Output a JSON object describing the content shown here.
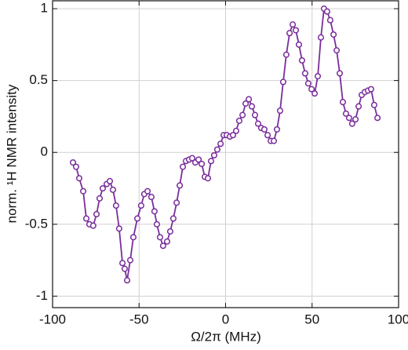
{
  "chart_data": {
    "type": "line",
    "xlabel": "Ω/2π (MHz)",
    "ylabel": "norm. ¹H NMR intensity",
    "xlim": [
      -100,
      100
    ],
    "ylim": [
      -1.08,
      1.055
    ],
    "xticks": [
      -100,
      -50,
      0,
      50,
      100
    ],
    "yticks": [
      -1,
      -0.5,
      0,
      0.5,
      1
    ],
    "grid": true,
    "series": [
      {
        "color": "#7a2d9c",
        "x": [
          -88.2,
          -86.4,
          -84.6,
          -82.3,
          -80.5,
          -78.7,
          -76.5,
          -74.6,
          -72.8,
          -71.0,
          -68.7,
          -66.9,
          -65.1,
          -63.3,
          -61.5,
          -59.6,
          -58.3,
          -56.9,
          -55.1,
          -53.3,
          -51.0,
          -48.8,
          -47.0,
          -45.1,
          -42.9,
          -41.1,
          -39.7,
          -37.9,
          -36.1,
          -33.8,
          -32.0,
          -30.2,
          -28.3,
          -26.5,
          -24.7,
          -22.9,
          -21.1,
          -19.3,
          -17.5,
          -15.6,
          -13.8,
          -12.0,
          -10.2,
          -8.4,
          -6.6,
          -4.8,
          -2.9,
          -1.1,
          0.7,
          2.5,
          4.3,
          6.1,
          7.9,
          9.8,
          11.6,
          13.4,
          15.2,
          17.0,
          18.8,
          20.6,
          22.4,
          24.3,
          26.1,
          27.9,
          29.7,
          31.5,
          33.3,
          35.1,
          37.0,
          38.8,
          40.6,
          42.4,
          44.2,
          46.0,
          47.8,
          49.7,
          51.5,
          53.3,
          55.1,
          56.9,
          58.7,
          60.5,
          62.4,
          64.2,
          66.0,
          67.8,
          69.6,
          71.4,
          73.2,
          75.1,
          76.9,
          78.7,
          80.5,
          82.3,
          84.1,
          85.9,
          87.8
        ],
        "values": [
          -0.07,
          -0.1,
          -0.18,
          -0.27,
          -0.46,
          -0.5,
          -0.51,
          -0.43,
          -0.32,
          -0.25,
          -0.22,
          -0.2,
          -0.26,
          -0.37,
          -0.53,
          -0.77,
          -0.81,
          -0.89,
          -0.75,
          -0.59,
          -0.46,
          -0.37,
          -0.29,
          -0.27,
          -0.31,
          -0.41,
          -0.5,
          -0.59,
          -0.65,
          -0.62,
          -0.55,
          -0.46,
          -0.35,
          -0.23,
          -0.1,
          -0.06,
          -0.05,
          -0.04,
          -0.07,
          -0.05,
          -0.08,
          -0.17,
          -0.18,
          -0.06,
          -0.02,
          0.02,
          0.06,
          0.12,
          0.12,
          0.11,
          0.12,
          0.15,
          0.22,
          0.26,
          0.34,
          0.37,
          0.32,
          0.26,
          0.2,
          0.17,
          0.16,
          0.12,
          0.08,
          0.08,
          0.16,
          0.29,
          0.49,
          0.68,
          0.83,
          0.89,
          0.85,
          0.75,
          0.64,
          0.55,
          0.48,
          0.44,
          0.41,
          0.53,
          0.8,
          1.0,
          0.98,
          0.92,
          0.82,
          0.71,
          0.55,
          0.35,
          0.27,
          0.24,
          0.2,
          0.23,
          0.32,
          0.4,
          0.42,
          0.43,
          0.44,
          0.33,
          0.24
        ]
      }
    ]
  }
}
